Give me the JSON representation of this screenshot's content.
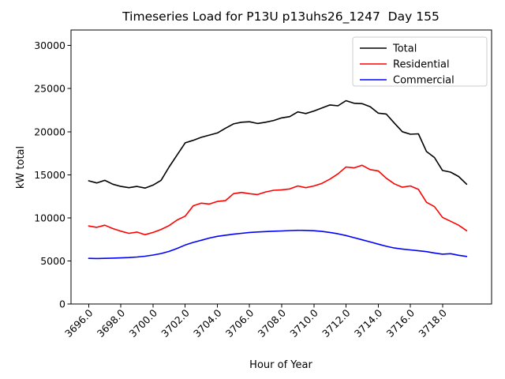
{
  "chart_data": {
    "type": "line",
    "title": "Timeseries Load for P13U p13uhs26_1247  Day 155",
    "xlabel": "Hour of Year",
    "ylabel": "kW total",
    "x_start": 3696.0,
    "x_step": 0.5,
    "xlim": [
      3694.9,
      3721.05
    ],
    "ylim": [
      0,
      31800
    ],
    "grid": false,
    "legend_position": "upper-right",
    "xtick_values": [
      3696,
      3698,
      3700,
      3702,
      3704,
      3706,
      3708,
      3710,
      3712,
      3714,
      3716,
      3718
    ],
    "xtick_labels": [
      "3696.0",
      "3698.0",
      "3700.0",
      "3702.0",
      "3704.0",
      "3706.0",
      "3708.0",
      "3710.0",
      "3712.0",
      "3714.0",
      "3716.0",
      "3718.0"
    ],
    "ytick_values": [
      0,
      5000,
      10000,
      15000,
      20000,
      25000,
      30000
    ],
    "ytick_labels": [
      "0",
      "5000",
      "10000",
      "15000",
      "20000",
      "25000",
      "30000"
    ],
    "series": [
      {
        "name": "Total",
        "color": "#000000",
        "values": [
          14300,
          14050,
          14350,
          13900,
          13650,
          13500,
          13650,
          13450,
          13800,
          14350,
          15900,
          17300,
          18700,
          19000,
          19350,
          19600,
          19850,
          20400,
          20900,
          21100,
          21150,
          20950,
          21100,
          21300,
          21600,
          21750,
          22300,
          22100,
          22400,
          22750,
          23100,
          23000,
          23600,
          23300,
          23250,
          22900,
          22150,
          22050,
          21000,
          20000,
          19700,
          19750,
          17700,
          17000,
          15500,
          15300,
          14800,
          13900
        ]
      },
      {
        "name": "Residential",
        "color": "#ff0000",
        "values": [
          9050,
          8900,
          9150,
          8750,
          8450,
          8200,
          8350,
          8050,
          8300,
          8650,
          9100,
          9750,
          10200,
          11400,
          11700,
          11600,
          11900,
          12000,
          12800,
          12950,
          12800,
          12700,
          13000,
          13200,
          13250,
          13350,
          13700,
          13500,
          13700,
          14000,
          14500,
          15100,
          15900,
          15800,
          16100,
          15600,
          15450,
          14600,
          13950,
          13550,
          13700,
          13300,
          11800,
          11300,
          10050,
          9600,
          9150,
          8500
        ]
      },
      {
        "name": "Commercial",
        "color": "#0000ff",
        "values": [
          5300,
          5280,
          5300,
          5320,
          5350,
          5390,
          5450,
          5540,
          5680,
          5860,
          6100,
          6450,
          6850,
          7150,
          7400,
          7650,
          7850,
          7980,
          8100,
          8200,
          8300,
          8360,
          8400,
          8450,
          8480,
          8520,
          8550,
          8540,
          8500,
          8420,
          8300,
          8150,
          7950,
          7700,
          7450,
          7200,
          6950,
          6700,
          6500,
          6380,
          6280,
          6180,
          6080,
          5920,
          5780,
          5840,
          5650,
          5520
        ]
      }
    ]
  }
}
